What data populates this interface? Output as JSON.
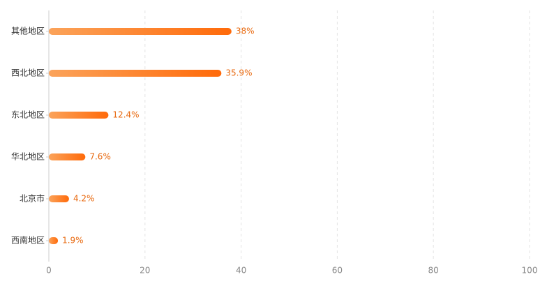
{
  "chart_data": {
    "type": "hbar",
    "categories": [
      "其他地区",
      "西北地区",
      "东北地区",
      "华北地区",
      "北京市",
      "西南地区"
    ],
    "values": [
      38,
      35.9,
      12.4,
      7.6,
      4.2,
      1.9
    ],
    "value_labels": [
      "38%",
      "35.9%",
      "12.4%",
      "7.6%",
      "4.2%",
      "1.9%"
    ],
    "colors": [
      "#fba35a",
      "#ff6a0a"
    ],
    "label_color": "#e8690f",
    "xlim": [
      0,
      100
    ],
    "xticks": [
      0,
      20,
      40,
      60,
      80,
      100
    ],
    "grid": true
  }
}
